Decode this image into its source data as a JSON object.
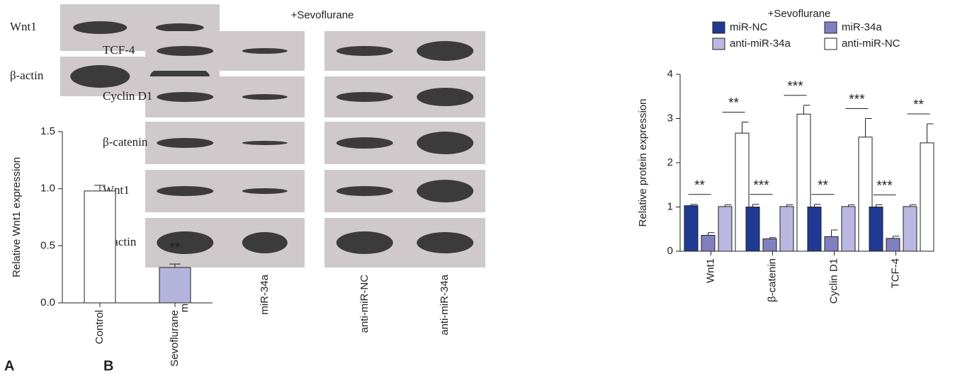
{
  "figure": {
    "panel_a": "A",
    "panel_b": "B",
    "blot_a_rows": [
      "Wnt1",
      "β-actin"
    ],
    "blot_b_title": "+Sevoflurane",
    "blot_b_rows": [
      "TCF-4",
      "Cyclin D1",
      "β-catenin",
      "Wnt1",
      "β-actin"
    ],
    "blot_b_lanes": [
      "miR-NC",
      "miR-34a",
      "anti-miR-NC",
      "anti-miR-34a"
    ]
  },
  "chart_data": [
    {
      "type": "bar",
      "ylabel": "Relative Wnt1 expression",
      "categories": [
        "Control",
        "Sevoflurane"
      ],
      "values": [
        0.98,
        0.31
      ],
      "errors": [
        0.05,
        0.03
      ],
      "colors": [
        "#ffffff",
        "#b3b3dc"
      ],
      "annotations": [
        null,
        "**"
      ],
      "ylim": [
        0,
        1.5
      ],
      "yticks": [
        {
          "value": 0,
          "label": "0.0"
        },
        {
          "value": 0.5,
          "label": "0.5"
        },
        {
          "value": 1,
          "label": "1.0"
        },
        {
          "value": 1.5,
          "label": "1.5"
        }
      ]
    },
    {
      "type": "grouped_bar",
      "title": "+Sevoflurane",
      "ylabel": "Relative protein expression",
      "categories": [
        "Wnt1",
        "β-catenin",
        "Cyclin D1",
        "TCF-4"
      ],
      "series": [
        {
          "name": "miR-NC",
          "color": "#1f3a93",
          "values": [
            1.03,
            1.0,
            1.0,
            1.0
          ],
          "errors": [
            0.03,
            0.06,
            0.06,
            0.05
          ]
        },
        {
          "name": "miR-34a",
          "color": "#8080c0",
          "values": [
            0.36,
            0.28,
            0.33,
            0.29
          ],
          "errors": [
            0.06,
            0.03,
            0.15,
            0.05
          ]
        },
        {
          "name": "anti-miR-34a",
          "color": "#b8b8e0",
          "values": [
            1.01,
            1.01,
            1.01,
            1.01
          ],
          "errors": [
            0.04,
            0.04,
            0.04,
            0.04
          ]
        },
        {
          "name": "anti-miR-NC",
          "color": "#ffffff",
          "values": [
            2.67,
            3.1,
            2.58,
            2.45
          ],
          "errors": [
            0.25,
            0.2,
            0.42,
            0.43
          ]
        }
      ],
      "significance": [
        [
          "**",
          "**"
        ],
        [
          "***",
          "***"
        ],
        [
          "**",
          "***"
        ],
        [
          "***",
          "**"
        ]
      ],
      "ylim": [
        0,
        4
      ],
      "yticks": [
        0,
        1,
        2,
        3,
        4
      ]
    }
  ]
}
